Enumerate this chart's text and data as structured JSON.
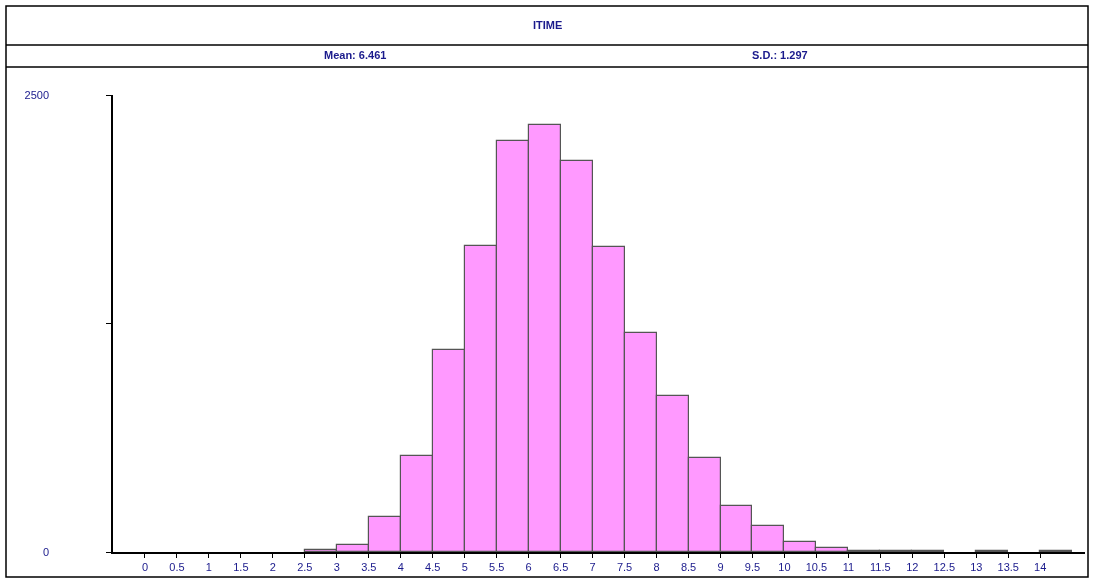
{
  "chart_data": {
    "type": "histogram",
    "title": "ITIME",
    "annotations": [
      "Mean: 6.461",
      "S.D.: 1.297"
    ],
    "bins": [
      2.5,
      3,
      3.5,
      4,
      4.5,
      5,
      5.5,
      6,
      6.5,
      7,
      7.5,
      8,
      8.5,
      9,
      9.5,
      10,
      10.5,
      11,
      11.5,
      12,
      12.5,
      13,
      13.5,
      14,
      14.5
    ],
    "values": [
      10,
      40,
      190,
      525,
      1105,
      1675,
      2250,
      2335,
      2140,
      1670,
      1200,
      855,
      515,
      250,
      140,
      55,
      20,
      8,
      8,
      8,
      0,
      8,
      0,
      8
    ],
    "color": "#ff99ff",
    "xlim": [
      -0.5,
      14.7
    ],
    "xticks": [
      0,
      0.5,
      1,
      1.5,
      2,
      2.5,
      3,
      3.5,
      4,
      4.5,
      5,
      5.5,
      6,
      6.5,
      7,
      7.5,
      8,
      8.5,
      9,
      9.5,
      10,
      10.5,
      11,
      11.5,
      12,
      12.5,
      13,
      13.5,
      14
    ],
    "ylim": [
      0,
      2500
    ],
    "yticks": [
      0,
      {
        "value": 1250,
        "label": null
      },
      2500
    ]
  }
}
